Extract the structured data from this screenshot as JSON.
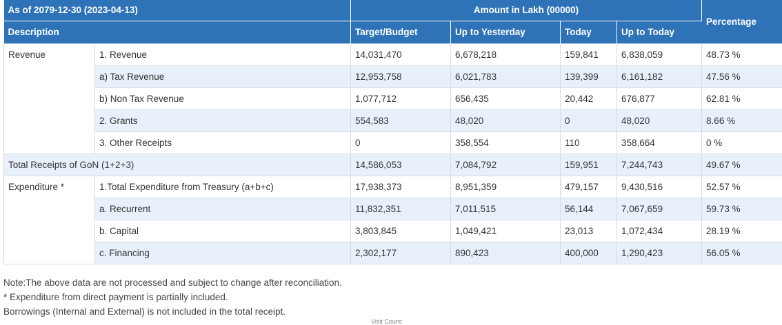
{
  "header": {
    "as_of": "As of 2079-12-30 (2023-04-13)",
    "amount_unit": "Amount in Lakh (00000)",
    "columns": {
      "description": "Description",
      "target": "Target/Budget",
      "up_to_yesterday": "Up to Yesterday",
      "today": "Today",
      "up_to_today": "Up to Today",
      "percentage": "Percentage"
    }
  },
  "rows": {
    "revenue_group": "Revenue",
    "revenue": {
      "label": "1. Revenue",
      "target": "14,031,470",
      "up_to_yesterday": "6,678,218",
      "today": "159,841",
      "up_to_today": "6,838,059",
      "percentage": "48.73 %"
    },
    "tax_revenue": {
      "label": "a) Tax Revenue",
      "target": "12,953,758",
      "up_to_yesterday": "6,021,783",
      "today": "139,399",
      "up_to_today": "6,161,182",
      "percentage": "47.56 %"
    },
    "non_tax_revenue": {
      "label": "b) Non Tax Revenue",
      "target": "1,077,712",
      "up_to_yesterday": "656,435",
      "today": "20,442",
      "up_to_today": "676,877",
      "percentage": "62.81 %"
    },
    "grants": {
      "label": "2. Grants",
      "target": "554,583",
      "up_to_yesterday": "48,020",
      "today": "0",
      "up_to_today": "48,020",
      "percentage": "8.66 %"
    },
    "other_receipts": {
      "label": "3. Other Receipts",
      "target": "0",
      "up_to_yesterday": "358,554",
      "today": "110",
      "up_to_today": "358,664",
      "percentage": "0 %"
    },
    "total_receipts": {
      "label": "Total Receipts of GoN (1+2+3)",
      "target": "14,586,053",
      "up_to_yesterday": "7,084,792",
      "today": "159,951",
      "up_to_today": "7,244,743",
      "percentage": "49.67 %"
    },
    "expenditure_group": "Expenditure *",
    "total_expenditure": {
      "label": "1.Total Expenditure from Treasury (a+b+c)",
      "target": "17,938,373",
      "up_to_yesterday": "8,951,359",
      "today": "479,157",
      "up_to_today": "9,430,516",
      "percentage": "52.57 %"
    },
    "recurrent": {
      "label": "a. Recurrent",
      "target": "11,832,351",
      "up_to_yesterday": "7,011,515",
      "today": "56,144",
      "up_to_today": "7,067,659",
      "percentage": "59.73 %"
    },
    "capital": {
      "label": "b. Capital",
      "target": "3,803,845",
      "up_to_yesterday": "1,049,421",
      "today": "23,013",
      "up_to_today": "1,072,434",
      "percentage": "28.19 %"
    },
    "financing": {
      "label": "c. Financing",
      "target": "2,302,177",
      "up_to_yesterday": "890,423",
      "today": "400,000",
      "up_to_today": "1,290,423",
      "percentage": "56.05 %"
    }
  },
  "notes": [
    "Note:The above data are not processed and subject to change after reconciliation.",
    "* Expenditure from direct payment is partially included.",
    "Borrowings (Internal and External) is not included in the total receipt."
  ],
  "visit_count_label": "Visit Count:",
  "colors": {
    "header_bg": "#2e73b8",
    "alt_row_bg": "#e8f1fb",
    "border": "#d4dbe3"
  }
}
